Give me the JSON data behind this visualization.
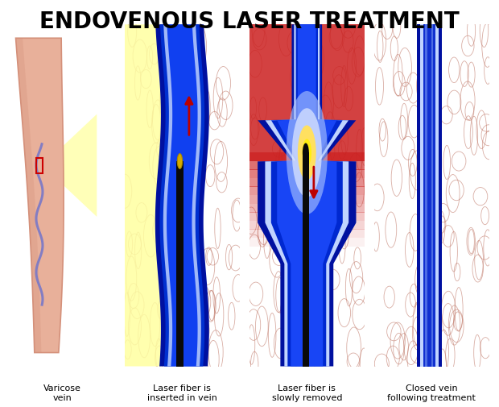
{
  "title": "ENDOVENOUS LASER TREATMENT",
  "title_fontsize": 20,
  "title_fontweight": "bold",
  "background_color": "#ffffff",
  "labels": [
    "Varicose\nvein",
    "Laser fiber is\ninserted in vein",
    "Laser fiber is\nslowly removed",
    "Closed vein\nfollowing treatment"
  ],
  "skin_color_light": "#e8b09a",
  "skin_color_mid": "#d4907a",
  "skin_color_dark": "#c07868",
  "tissue_bg": "#dda090",
  "tissue_cell": "#c88878",
  "vein_outer": "#0010a0",
  "vein_mid": "#1030d0",
  "vein_inner": "#2050ff",
  "vein_highlight": "#6090ff",
  "vein_white": "#c0d0ff",
  "blood_red": "#cc1010",
  "red_heat": "#cc2020",
  "laser_yellow": "#ffee00",
  "laser_orange": "#ff8800",
  "fiber_black": "#0a0a0a",
  "tip_yellow": "#d4aa00",
  "arrow_red": "#bb0000",
  "yellow_bg": "#ffffa0",
  "white_glow": "#ffffff"
}
